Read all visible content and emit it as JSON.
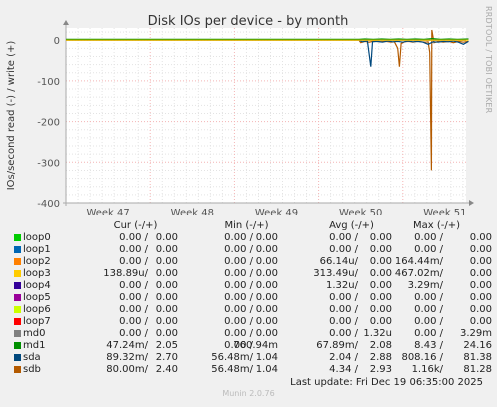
{
  "side_label": "RRDTOOL / TOBI OETIKER",
  "footer": "Munin 2.0.76",
  "last_update": "Last update: Fri Dec 19 06:35:00 2025",
  "legend": {
    "headers": [
      "Cur (-/+)",
      "Min (-/+)",
      "Avg (-/+)",
      "Max (-/+)"
    ],
    "rows": [
      {
        "name": "loop0",
        "color": "#00cc00",
        "cur": [
          "0.00 /",
          "0.00"
        ],
        "min": [
          "0.00 /",
          "0.00"
        ],
        "avg": [
          "0.00 /",
          "0.00"
        ],
        "max": [
          "0.00 /",
          "0.00"
        ]
      },
      {
        "name": "loop1",
        "color": "#0066b3",
        "cur": [
          "0.00 /",
          "0.00"
        ],
        "min": [
          "0.00 /",
          "0.00"
        ],
        "avg": [
          "0.00 /",
          "0.00"
        ],
        "max": [
          "0.00 /",
          "0.00"
        ]
      },
      {
        "name": "loop2",
        "color": "#ff8000",
        "cur": [
          "0.00 /",
          "0.00"
        ],
        "min": [
          "0.00 /",
          "0.00"
        ],
        "avg": [
          "66.14u/",
          "0.00"
        ],
        "max": [
          "164.44m/",
          "0.00"
        ]
      },
      {
        "name": "loop3",
        "color": "#ffcc00",
        "cur": [
          "138.89u/",
          "0.00"
        ],
        "min": [
          "0.00 /",
          "0.00"
        ],
        "avg": [
          "313.49u/",
          "0.00"
        ],
        "max": [
          "467.02m/",
          "0.00"
        ]
      },
      {
        "name": "loop4",
        "color": "#330099",
        "cur": [
          "0.00 /",
          "0.00"
        ],
        "min": [
          "0.00 /",
          "0.00"
        ],
        "avg": [
          "1.32u/",
          "0.00"
        ],
        "max": [
          "3.29m/",
          "0.00"
        ]
      },
      {
        "name": "loop5",
        "color": "#990099",
        "cur": [
          "0.00 /",
          "0.00"
        ],
        "min": [
          "0.00 /",
          "0.00"
        ],
        "avg": [
          "0.00 /",
          "0.00"
        ],
        "max": [
          "0.00 /",
          "0.00"
        ]
      },
      {
        "name": "loop6",
        "color": "#ccff00",
        "cur": [
          "0.00 /",
          "0.00"
        ],
        "min": [
          "0.00 /",
          "0.00"
        ],
        "avg": [
          "0.00 /",
          "0.00"
        ],
        "max": [
          "0.00 /",
          "0.00"
        ]
      },
      {
        "name": "loop7",
        "color": "#ff0000",
        "cur": [
          "0.00 /",
          "0.00"
        ],
        "min": [
          "0.00 /",
          "0.00"
        ],
        "avg": [
          "0.00 /",
          "0.00"
        ],
        "max": [
          "0.00 /",
          "0.00"
        ]
      },
      {
        "name": "md0",
        "color": "#808080",
        "cur": [
          "0.00 /",
          "0.00"
        ],
        "min": [
          "0.00 /",
          "0.00"
        ],
        "avg": [
          "0.00 /",
          "1.32u"
        ],
        "max": [
          "0.00 /",
          "3.29m"
        ]
      },
      {
        "name": "md1",
        "color": "#008f00",
        "cur": [
          "47.24m/",
          "2.05"
        ],
        "min": [
          "0.00 /",
          "760.94m"
        ],
        "avg": [
          "67.89m/",
          "2.08"
        ],
        "max": [
          "8.43 /",
          "24.16"
        ]
      },
      {
        "name": "sda",
        "color": "#00487d",
        "cur": [
          "89.32m/",
          "2.70"
        ],
        "min": [
          "56.48m/",
          "1.04"
        ],
        "avg": [
          "2.04 /",
          "2.88"
        ],
        "max": [
          "808.16 /",
          "81.38"
        ]
      },
      {
        "name": "sdb",
        "color": "#b35a00",
        "cur": [
          "80.00m/",
          "2.40"
        ],
        "min": [
          "56.48m/",
          "1.04"
        ],
        "avg": [
          "4.34 /",
          "2.93"
        ],
        "max": [
          "1.16k/",
          "81.28"
        ]
      }
    ]
  },
  "chart_data": {
    "type": "line",
    "title": "Disk IOs per device - by month",
    "ylabel": "IOs/second read (-) / write (+)",
    "ylim": [
      -400,
      30
    ],
    "yticks": [
      0,
      -100,
      -200,
      -300,
      -400
    ],
    "week_labels": [
      {
        "label": "Week 47",
        "pos": 0.5
      },
      {
        "label": "Week 48",
        "pos": 1.5
      },
      {
        "label": "Week 49",
        "pos": 2.5
      },
      {
        "label": "Week 50",
        "pos": 3.5
      },
      {
        "label": "Week 51",
        "pos": 4.5
      }
    ],
    "x_range_weeks": [
      0,
      4.78
    ],
    "series": [
      {
        "name": "sdb",
        "color": "#b35a00",
        "points": [
          [
            3.48,
            0
          ],
          [
            3.5,
            -6
          ],
          [
            3.55,
            -3
          ],
          [
            3.6,
            -5
          ],
          [
            3.66,
            -2
          ],
          [
            3.72,
            -4
          ],
          [
            3.8,
            -3
          ],
          [
            3.86,
            -5
          ],
          [
            3.9,
            -4
          ],
          [
            3.94,
            -20
          ],
          [
            3.96,
            -65
          ],
          [
            3.98,
            -8
          ],
          [
            4.02,
            -4
          ],
          [
            4.07,
            -3
          ],
          [
            4.12,
            -5
          ],
          [
            4.17,
            -3
          ],
          [
            4.22,
            -4
          ],
          [
            4.27,
            -5
          ],
          [
            4.3,
            -4
          ],
          [
            4.32,
            -30
          ],
          [
            4.34,
            -320
          ],
          [
            4.345,
            25
          ],
          [
            4.37,
            -6
          ],
          [
            4.42,
            -3
          ],
          [
            4.48,
            -5
          ],
          [
            4.55,
            -3
          ],
          [
            4.6,
            -6
          ],
          [
            4.66,
            -3
          ],
          [
            4.72,
            -5
          ],
          [
            4.78,
            -3
          ]
        ]
      },
      {
        "name": "sda",
        "color": "#00487d",
        "points": [
          [
            3.48,
            0
          ],
          [
            3.52,
            -4
          ],
          [
            3.58,
            -2
          ],
          [
            3.62,
            -65
          ],
          [
            3.64,
            -4
          ],
          [
            3.7,
            -3
          ],
          [
            3.76,
            -5
          ],
          [
            3.82,
            -2
          ],
          [
            3.88,
            -4
          ],
          [
            3.94,
            -3
          ],
          [
            4.0,
            -5
          ],
          [
            4.06,
            -2
          ],
          [
            4.12,
            -4
          ],
          [
            4.18,
            -3
          ],
          [
            4.24,
            -5
          ],
          [
            4.3,
            -10
          ],
          [
            4.36,
            -4
          ],
          [
            4.42,
            -5
          ],
          [
            4.48,
            -3
          ],
          [
            4.54,
            -4
          ],
          [
            4.6,
            -2
          ],
          [
            4.66,
            -5
          ],
          [
            4.72,
            -10
          ],
          [
            4.78,
            -3
          ]
        ]
      },
      {
        "name": "md1",
        "color": "#008f00",
        "points": [
          [
            0,
            2
          ],
          [
            3.48,
            2
          ],
          [
            3.55,
            3
          ],
          [
            3.65,
            2
          ],
          [
            3.75,
            3
          ],
          [
            3.85,
            2
          ],
          [
            3.95,
            3
          ],
          [
            4.05,
            2
          ],
          [
            4.15,
            3
          ],
          [
            4.25,
            2
          ],
          [
            4.35,
            4
          ],
          [
            4.45,
            2
          ],
          [
            4.55,
            3
          ],
          [
            4.65,
            2
          ],
          [
            4.78,
            3
          ]
        ]
      },
      {
        "name": "loop3",
        "color": "#ffcc00",
        "points": [
          [
            0,
            0
          ],
          [
            4.78,
            0
          ]
        ]
      }
    ]
  }
}
